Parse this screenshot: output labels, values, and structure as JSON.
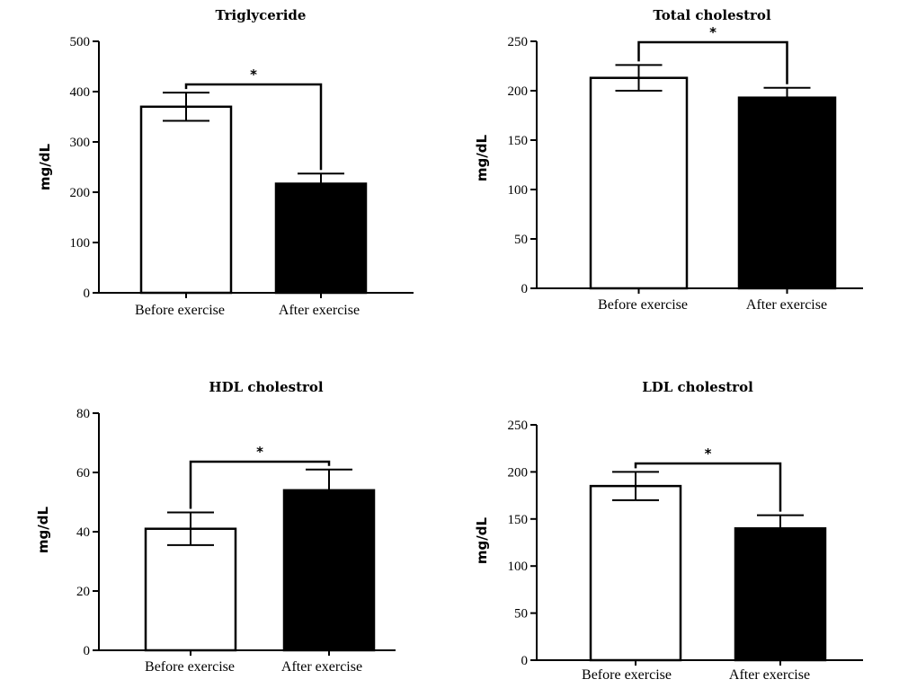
{
  "chart_data": [
    {
      "type": "bar",
      "title": "Triglyceride",
      "ylabel": "mg/dL",
      "categories": [
        "Before exercise",
        "After exercise"
      ],
      "values": [
        370,
        217
      ],
      "errors": [
        28,
        20
      ],
      "bar_colors": [
        "#ffffff",
        "#000000"
      ],
      "ylim": [
        0,
        500
      ],
      "yticks": [
        "0",
        "100",
        "200",
        "300",
        "400",
        "500"
      ],
      "significance": {
        "marker": "*",
        "from": 0,
        "to": 1
      }
    },
    {
      "type": "bar",
      "title": "Total cholestrol",
      "ylabel": "mg/dL",
      "categories": [
        "Before exercise",
        "After exercise"
      ],
      "values": [
        213,
        193
      ],
      "errors": [
        13,
        10
      ],
      "bar_colors": [
        "#ffffff",
        "#000000"
      ],
      "ylim": [
        0,
        250
      ],
      "yticks": [
        "0",
        "50",
        "100",
        "150",
        "200",
        "250"
      ],
      "significance": {
        "marker": "*",
        "from": 0,
        "to": 1
      }
    },
    {
      "type": "bar",
      "title": "HDL cholestrol",
      "ylabel": "mg/dL",
      "categories": [
        "Before exercise",
        "After exercise"
      ],
      "values": [
        41,
        54
      ],
      "errors": [
        5.5,
        7
      ],
      "bar_colors": [
        "#ffffff",
        "#000000"
      ],
      "ylim": [
        0,
        80
      ],
      "yticks": [
        "0",
        "20",
        "40",
        "60",
        "80"
      ],
      "significance": {
        "marker": "*",
        "from": 0,
        "to": 1
      }
    },
    {
      "type": "bar",
      "title": "LDL cholestrol",
      "ylabel": "mg/dL",
      "categories": [
        "Before exercise",
        "After exercise"
      ],
      "values": [
        185,
        140
      ],
      "errors": [
        15,
        14
      ],
      "bar_colors": [
        "#ffffff",
        "#000000"
      ],
      "ylim": [
        0,
        250
      ],
      "yticks": [
        "0",
        "50",
        "100",
        "150",
        "200",
        "250"
      ],
      "significance": {
        "marker": "*",
        "from": 0,
        "to": 1
      }
    }
  ]
}
